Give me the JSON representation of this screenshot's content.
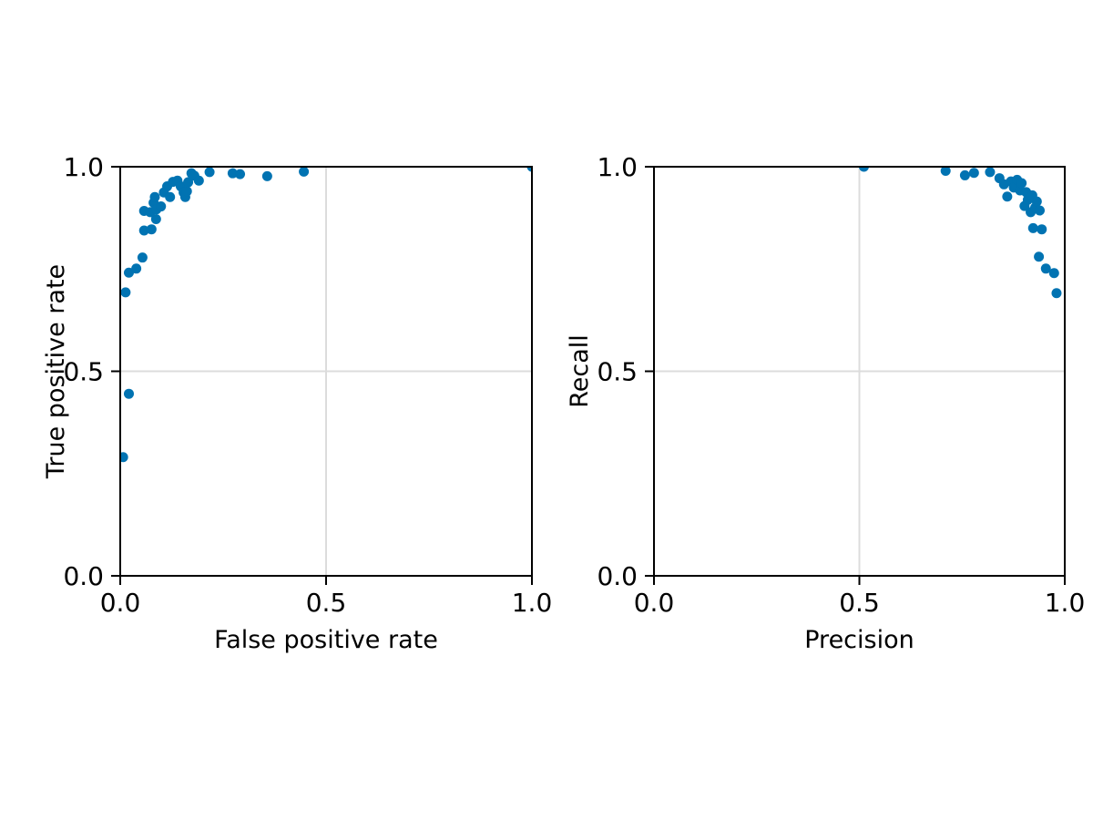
{
  "style": {
    "background": "#ffffff",
    "marker_color": "#0173b2",
    "axis_color": "#000000",
    "text_color": "#000000",
    "grid_color": "#dcdcdc"
  },
  "chart_data": [
    {
      "type": "scatter",
      "id": "roc",
      "title": "",
      "xlabel": "False positive rate",
      "ylabel": "True positive rate",
      "xlim": [
        0.0,
        1.0
      ],
      "ylim": [
        0.0,
        1.0
      ],
      "xticks": [
        0.0,
        0.5,
        1.0
      ],
      "xtick_labels": [
        "0.0",
        "0.5",
        "1.0"
      ],
      "yticks": [
        0.0,
        0.5,
        1.0
      ],
      "ytick_labels": [
        "0.0",
        "0.5",
        "1.0"
      ],
      "grid": true,
      "points": [
        [
          0.007,
          0.29
        ],
        [
          0.021,
          0.445
        ],
        [
          0.013,
          0.693
        ],
        [
          0.021,
          0.741
        ],
        [
          0.039,
          0.751
        ],
        [
          0.054,
          0.778
        ],
        [
          0.058,
          0.844
        ],
        [
          0.076,
          0.847
        ],
        [
          0.087,
          0.872
        ],
        [
          0.058,
          0.892
        ],
        [
          0.073,
          0.889
        ],
        [
          0.081,
          0.912
        ],
        [
          0.084,
          0.926
        ],
        [
          0.088,
          0.896
        ],
        [
          0.099,
          0.903
        ],
        [
          0.106,
          0.937
        ],
        [
          0.114,
          0.952
        ],
        [
          0.121,
          0.926
        ],
        [
          0.128,
          0.963
        ],
        [
          0.139,
          0.966
        ],
        [
          0.147,
          0.952
        ],
        [
          0.154,
          0.937
        ],
        [
          0.158,
          0.926
        ],
        [
          0.162,
          0.94
        ],
        [
          0.165,
          0.962
        ],
        [
          0.173,
          0.984
        ],
        [
          0.18,
          0.978
        ],
        [
          0.191,
          0.966
        ],
        [
          0.217,
          0.987
        ],
        [
          0.273,
          0.984
        ],
        [
          0.291,
          0.982
        ],
        [
          0.357,
          0.977
        ],
        [
          0.446,
          0.988
        ],
        [
          1.0,
          1.0
        ]
      ]
    },
    {
      "type": "scatter",
      "id": "precision-recall",
      "title": "",
      "xlabel": "Precision",
      "ylabel": "Recall",
      "xlim": [
        0.0,
        1.0
      ],
      "ylim": [
        0.0,
        1.0
      ],
      "xticks": [
        0.0,
        0.5,
        1.0
      ],
      "xtick_labels": [
        "0.0",
        "0.5",
        "1.0"
      ],
      "yticks": [
        0.0,
        0.5,
        1.0
      ],
      "ytick_labels": [
        "0.0",
        "0.5",
        "1.0"
      ],
      "grid": true,
      "points": [
        [
          0.511,
          1.0
        ],
        [
          0.71,
          0.99
        ],
        [
          0.757,
          0.979
        ],
        [
          0.779,
          0.985
        ],
        [
          0.818,
          0.987
        ],
        [
          0.841,
          0.972
        ],
        [
          0.852,
          0.957
        ],
        [
          0.86,
          0.927
        ],
        [
          0.869,
          0.964
        ],
        [
          0.876,
          0.949
        ],
        [
          0.884,
          0.968
        ],
        [
          0.891,
          0.942
        ],
        [
          0.895,
          0.96
        ],
        [
          0.902,
          0.904
        ],
        [
          0.906,
          0.938
        ],
        [
          0.91,
          0.919
        ],
        [
          0.917,
          0.889
        ],
        [
          0.921,
          0.93
        ],
        [
          0.928,
          0.9
        ],
        [
          0.932,
          0.915
        ],
        [
          0.939,
          0.893
        ],
        [
          0.923,
          0.85
        ],
        [
          0.944,
          0.847
        ],
        [
          0.937,
          0.78
        ],
        [
          0.954,
          0.751
        ],
        [
          0.974,
          0.74
        ],
        [
          0.98,
          0.691
        ]
      ]
    }
  ]
}
